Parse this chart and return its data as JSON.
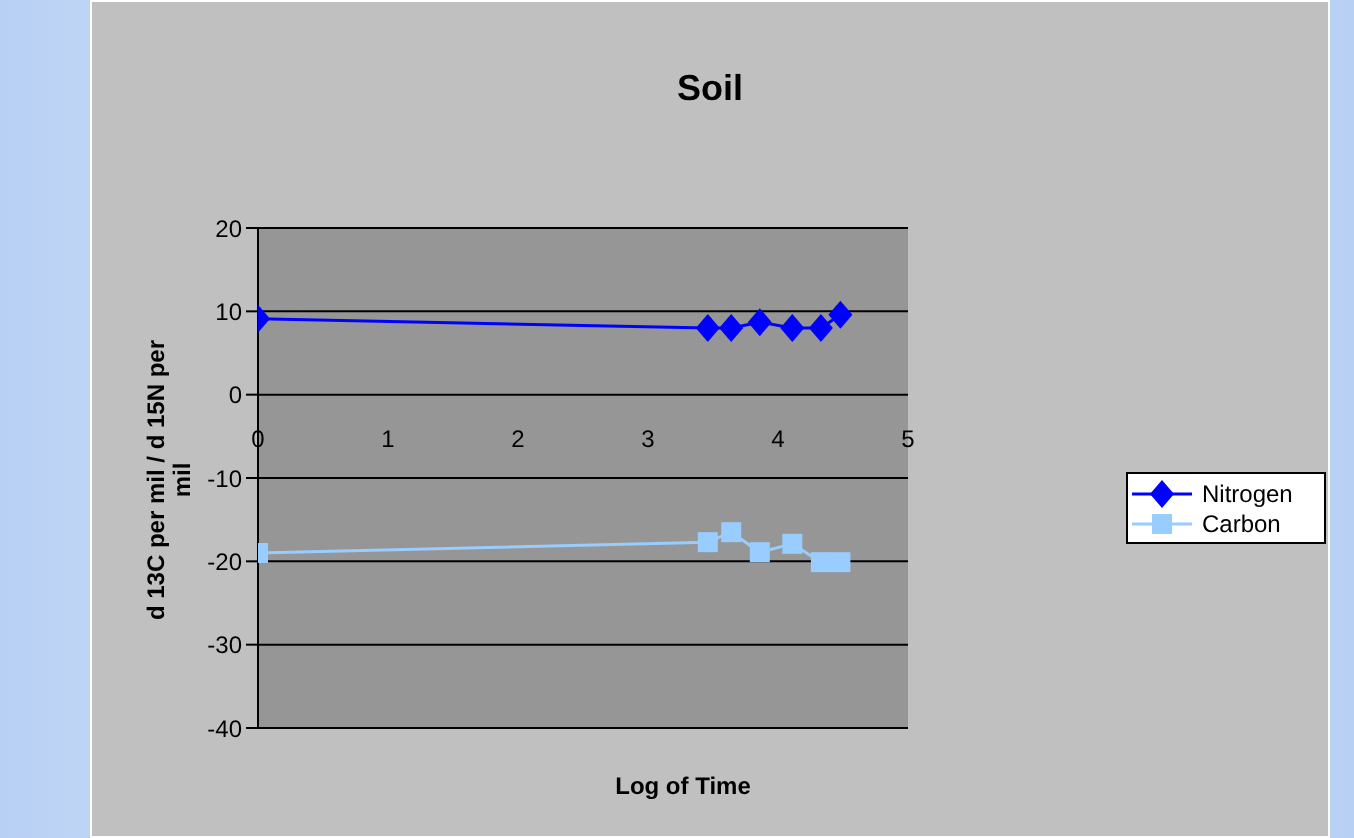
{
  "chart_data": {
    "type": "line",
    "title": "Soil",
    "xlabel": "Log of Time",
    "ylabel": "d 13C per mil / d 15N per mil",
    "x": [
      0,
      3.46,
      3.64,
      3.86,
      4.11,
      4.33,
      4.48
    ],
    "series": [
      {
        "name": "Nitrogen",
        "color": "#0000ff",
        "marker": "diamond",
        "values": [
          9.1,
          8.0,
          8.0,
          8.7,
          8.0,
          8.0,
          9.6
        ]
      },
      {
        "name": "Carbon",
        "color": "#99ccff",
        "marker": "square",
        "values": [
          -19.0,
          -17.7,
          -16.5,
          -18.9,
          -17.9,
          -20.1,
          -20.1
        ]
      }
    ],
    "xlim": [
      0,
      5
    ],
    "xticks": [
      0,
      1,
      2,
      3,
      4,
      5
    ],
    "ylim": [
      -40,
      20
    ],
    "yticks": [
      -40,
      -30,
      -20,
      -10,
      0,
      10,
      20
    ],
    "grid": "y",
    "legend": "right",
    "line_style": "solid"
  }
}
